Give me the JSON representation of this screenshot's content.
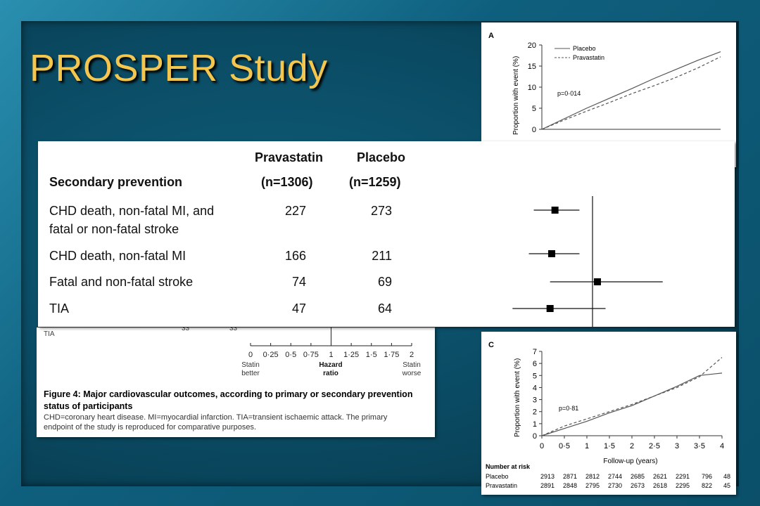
{
  "slide": {
    "title": "PROSPER Study",
    "colors": {
      "title": "#f3c74f",
      "background": "#0b4f69",
      "frame": "#2a8fb0"
    }
  },
  "table": {
    "col_headers": {
      "pravastatin": "Pravastatin",
      "pravastatin_n": "(n=1306)",
      "placebo": "Placebo",
      "placebo_n": "(n=1259)"
    },
    "section_title": "Secondary prevention",
    "rows": [
      {
        "label_line1": "CHD death, non-fatal MI, and",
        "label_line2": "fatal or non-fatal stroke",
        "pravastatin": "227",
        "placebo": "273"
      },
      {
        "label_line1": "CHD death, non-fatal MI",
        "label_line2": "",
        "pravastatin": "166",
        "placebo": "211"
      },
      {
        "label_line1": "Fatal and non-fatal stroke",
        "label_line2": "",
        "pravastatin": "74",
        "placebo": "69"
      },
      {
        "label_line1": "TIA",
        "label_line2": "",
        "pravastatin": "47",
        "placebo": "64"
      }
    ]
  },
  "forest_axis": {
    "ticks": [
      "0",
      "0·25",
      "0·5",
      "0·75",
      "1",
      "1·25",
      "1·5",
      "1·75",
      "2"
    ],
    "left_label_1": "Statin",
    "left_label_2": "better",
    "center_label_1": "Hazard",
    "center_label_2": "ratio",
    "right_label_1": "Statin",
    "right_label_2": "worse",
    "hidden_row_numbers": [
      "33",
      "33"
    ],
    "hidden_row_label": "TIA"
  },
  "figure_caption": {
    "title_line1": "Figure 4: Major cardiovascular outcomes, according to primary or secondary prevention",
    "title_line2": "status of participants",
    "body_line1": "CHD=coronary heart disease. MI=myocardial infarction. TIA=transient ischaemic attack. The primary",
    "body_line2": "endpoint of the study is reproduced for comparative purposes."
  },
  "panelA": {
    "letter": "A",
    "ylabel": "Proportion with event (%)",
    "legend": [
      "Placebo",
      "Pravastatin"
    ],
    "pvalue": "p=0·014",
    "yticks": [
      "0",
      "5",
      "10",
      "15",
      "20"
    ]
  },
  "panelC": {
    "letter": "C",
    "ylabel": "Proportion with event (%)",
    "pvalue": "p=0·81",
    "yticks": [
      "0",
      "1",
      "2",
      "3",
      "4",
      "5",
      "6",
      "7"
    ],
    "xticks": [
      "0",
      "0·5",
      "1",
      "1·5",
      "2",
      "2·5",
      "3",
      "3·5",
      "4"
    ],
    "xlabel": "Follow-up (years)",
    "risk_title": "Number at risk",
    "risk_rows": [
      {
        "name": "Placebo",
        "values": [
          "2913",
          "2871",
          "2812",
          "2744",
          "2685",
          "2621",
          "2291",
          "796",
          "48"
        ]
      },
      {
        "name": "Pravastatin",
        "values": [
          "2891",
          "2848",
          "2795",
          "2730",
          "2673",
          "2618",
          "2295",
          "822",
          "45"
        ]
      }
    ]
  },
  "chart_data": [
    {
      "type": "line",
      "title": "",
      "xlabel": "",
      "ylabel": "Proportion with event (%)",
      "ylim": [
        0,
        20
      ],
      "x": [
        0,
        0.5,
        1,
        1.5,
        2,
        2.5,
        3,
        3.5,
        4
      ],
      "series": [
        {
          "name": "Placebo",
          "style": "solid",
          "values": [
            0,
            2.5,
            5,
            7.3,
            9.6,
            12,
            14.2,
            16.4,
            18.4
          ]
        },
        {
          "name": "Pravastatin",
          "style": "dashed",
          "values": [
            0,
            2.2,
            4.3,
            6.3,
            8.4,
            10.3,
            12.3,
            14.6,
            17.2
          ]
        }
      ],
      "annotations": [
        "p=0·014"
      ]
    },
    {
      "type": "scatter",
      "title": "",
      "xlabel": "Hazard ratio",
      "xlim": [
        0,
        2
      ],
      "categories": [
        "CHD death, non-fatal MI, and fatal or non-fatal stroke",
        "CHD death, non-fatal MI",
        "Fatal and non-fatal stroke",
        "TIA"
      ],
      "hazard_ratio": [
        0.77,
        0.75,
        1.03,
        0.74
      ],
      "ci_low": [
        0.64,
        0.61,
        0.74,
        0.51
      ],
      "ci_high": [
        0.92,
        0.92,
        1.43,
        1.08
      ],
      "reference_line": 1
    },
    {
      "type": "line",
      "title": "",
      "xlabel": "Follow-up (years)",
      "ylabel": "Proportion with event (%)",
      "ylim": [
        0,
        7
      ],
      "xlim": [
        0,
        4
      ],
      "x": [
        0,
        0.5,
        1,
        1.5,
        2,
        2.5,
        3,
        3.5,
        4
      ],
      "series": [
        {
          "name": "Placebo",
          "style": "solid",
          "values": [
            0,
            0.6,
            1.2,
            1.9,
            2.5,
            3.3,
            4.1,
            5.0,
            5.2
          ]
        },
        {
          "name": "Pravastatin",
          "style": "dashed",
          "values": [
            0,
            0.8,
            1.4,
            2.0,
            2.6,
            3.3,
            4.0,
            4.9,
            6.5
          ]
        }
      ],
      "annotations": [
        "p=0·81"
      ]
    }
  ]
}
